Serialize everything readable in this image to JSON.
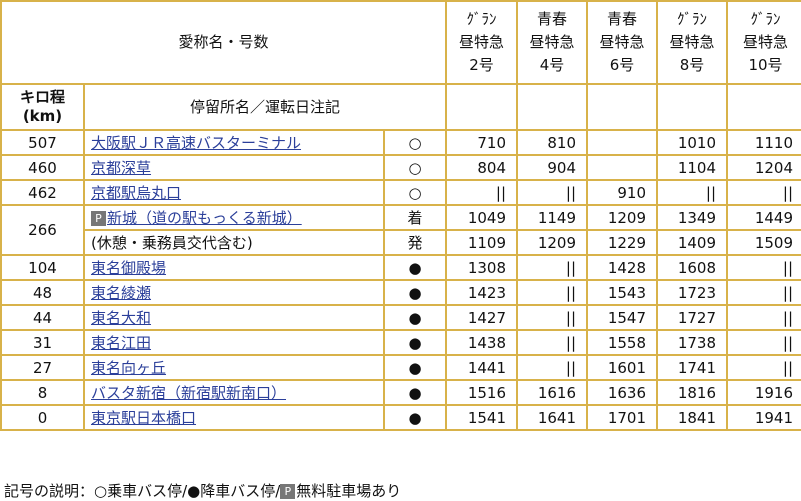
{
  "header": {
    "name_title": "愛称名・号数",
    "km_title": "キロ程\n(km)",
    "stop_title": "停留所名／運転日注記",
    "services": [
      {
        "line1": "ｸﾞﾗﾝ",
        "line2": "昼特急",
        "line3": "2号"
      },
      {
        "line1": "青春",
        "line2": "昼特急",
        "line3": "4号"
      },
      {
        "line1": "青春",
        "line2": "昼特急",
        "line3": "6号"
      },
      {
        "line1": "ｸﾞﾗﾝ",
        "line2": "昼特急",
        "line3": "8号"
      },
      {
        "line1": "ｸﾞﾗﾝ",
        "line2": "昼特急",
        "line3": "10号"
      }
    ]
  },
  "rows": [
    {
      "km": "507",
      "name": "大阪駅ＪＲ高速バスターミナル",
      "mark": "○",
      "times": [
        "710",
        "810",
        "",
        "1010",
        "1110"
      ]
    },
    {
      "km": "460",
      "name": "京都深草",
      "mark": "○",
      "times": [
        "804",
        "904",
        "",
        "1104",
        "1204"
      ]
    },
    {
      "km": "462",
      "name": "京都駅烏丸口",
      "mark": "○",
      "times": [
        "||",
        "||",
        "910",
        "||",
        "||"
      ]
    },
    {
      "km": "266",
      "name": "新城（道の駅もっくる新城）",
      "note": "(休憩・乗務員交代含む)",
      "parking": "P",
      "arr": "着",
      "dep": "発",
      "times_arr": [
        "1049",
        "1149",
        "1209",
        "1349",
        "1449"
      ],
      "times_dep": [
        "1109",
        "1209",
        "1229",
        "1409",
        "1509"
      ]
    },
    {
      "km": "104",
      "name": "東名御殿場",
      "mark": "●",
      "times": [
        "1308",
        "||",
        "1428",
        "1608",
        "||"
      ]
    },
    {
      "km": "48",
      "name": "東名綾瀬",
      "mark": "●",
      "times": [
        "1423",
        "||",
        "1543",
        "1723",
        "||"
      ]
    },
    {
      "km": "44",
      "name": "東名大和",
      "mark": "●",
      "times": [
        "1427",
        "||",
        "1547",
        "1727",
        "||"
      ]
    },
    {
      "km": "31",
      "name": "東名江田",
      "mark": "●",
      "times": [
        "1438",
        "||",
        "1558",
        "1738",
        "||"
      ]
    },
    {
      "km": "27",
      "name": "東名向ヶ丘",
      "mark": "●",
      "times": [
        "1441",
        "||",
        "1601",
        "1741",
        "||"
      ]
    },
    {
      "km": "8",
      "name": "バスタ新宿（新宿駅新南口）",
      "mark": "●",
      "times": [
        "1516",
        "1616",
        "1636",
        "1816",
        "1916"
      ]
    },
    {
      "km": "0",
      "name": "東京駅日本橋口",
      "mark": "●",
      "times": [
        "1541",
        "1641",
        "1701",
        "1841",
        "1941"
      ]
    }
  ],
  "footnote": {
    "a": "記号の説明：○乗車バス停/●降車バス停/",
    "p": "P",
    "b": "無料駐車場あり"
  },
  "colors": {
    "border": "#d8b24a",
    "link": "#2b3f9a"
  }
}
